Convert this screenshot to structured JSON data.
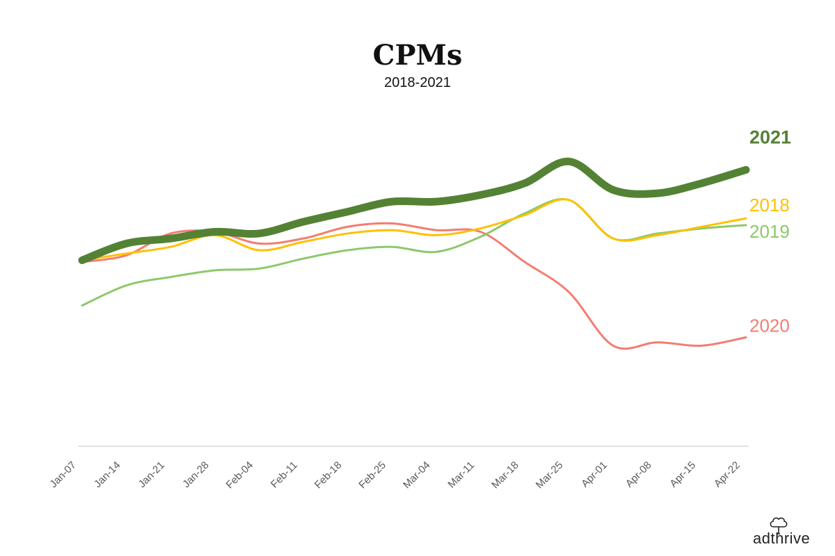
{
  "chart_data": {
    "type": "line",
    "title": "CPMs",
    "subtitle": "2018-2021",
    "xlabel": "",
    "ylabel": "",
    "x": [
      "Jan-07",
      "Jan-14",
      "Jan-21",
      "Jan-28",
      "Feb-04",
      "Feb-11",
      "Feb-18",
      "Feb-25",
      "Mar-04",
      "Mar-11",
      "Mar-18",
      "Mar-25",
      "Apr-01",
      "Apr-08",
      "Apr-15",
      "Apr-22"
    ],
    "x_tick_labels": [
      "Jan-07",
      "Jan-14",
      "Jan-21",
      "Jan-28",
      "Feb-04",
      "Feb-11",
      "Feb-18",
      "Feb-25",
      "Mar-04",
      "Mar-11",
      "Mar-18",
      "Mar-25",
      "Apr-01",
      "Apr-08",
      "Apr-15",
      "Apr-22"
    ],
    "y_axis_visible": false,
    "grid": false,
    "ylim": [
      0,
      100
    ],
    "series": [
      {
        "name": "2018",
        "color": "#FFC000",
        "values": [
          55.5,
          57.5,
          59.5,
          63.0,
          58.5,
          61.0,
          63.5,
          64.5,
          63.0,
          65.0,
          69.0,
          73.5,
          62.0,
          63.0,
          65.5,
          68.0
        ]
      },
      {
        "name": "2019",
        "color": "#8CC96A",
        "values": [
          42.0,
          48.0,
          50.5,
          52.5,
          53.0,
          56.0,
          58.5,
          59.5,
          58.0,
          62.5,
          69.5,
          73.5,
          62.0,
          63.5,
          65.0,
          66.0
        ]
      },
      {
        "name": "2020",
        "color": "#F47C70",
        "values": [
          55.0,
          57.0,
          63.5,
          64.0,
          60.5,
          62.0,
          65.5,
          66.5,
          64.5,
          64.0,
          55.0,
          46.0,
          30.0,
          31.0,
          30.0,
          32.5
        ]
      },
      {
        "name": "2021",
        "color": "#548235",
        "values": [
          55.5,
          60.5,
          62.0,
          64.0,
          63.5,
          67.0,
          70.0,
          73.0,
          73.0,
          75.0,
          78.5,
          85.0,
          76.5,
          75.5,
          78.5,
          82.5
        ]
      }
    ]
  },
  "logo": {
    "text": "adthrive"
  },
  "colors": {
    "axis": "#d9d9d9",
    "tick_text": "#595959",
    "title": "#111111"
  }
}
